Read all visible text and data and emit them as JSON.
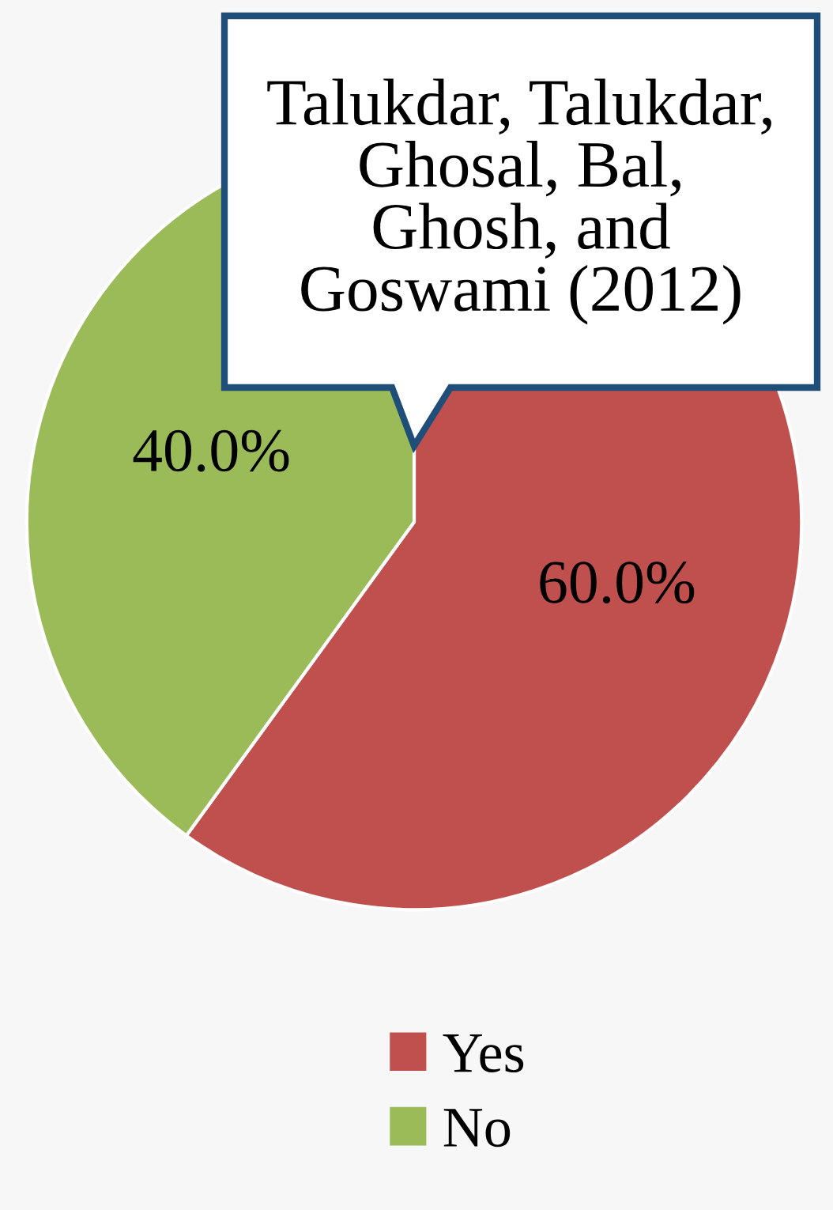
{
  "chart_data": {
    "type": "pie",
    "title": "Talukdar, Talukdar, Ghosal, Bal, Ghosh, and Goswami (2012)",
    "categories": [
      "Yes",
      "No"
    ],
    "values": [
      60,
      40
    ],
    "colors": [
      "#c0504d",
      "#9bbb59"
    ],
    "value_labels": [
      "60.0%",
      "40.0%"
    ],
    "legend": "bottom"
  }
}
